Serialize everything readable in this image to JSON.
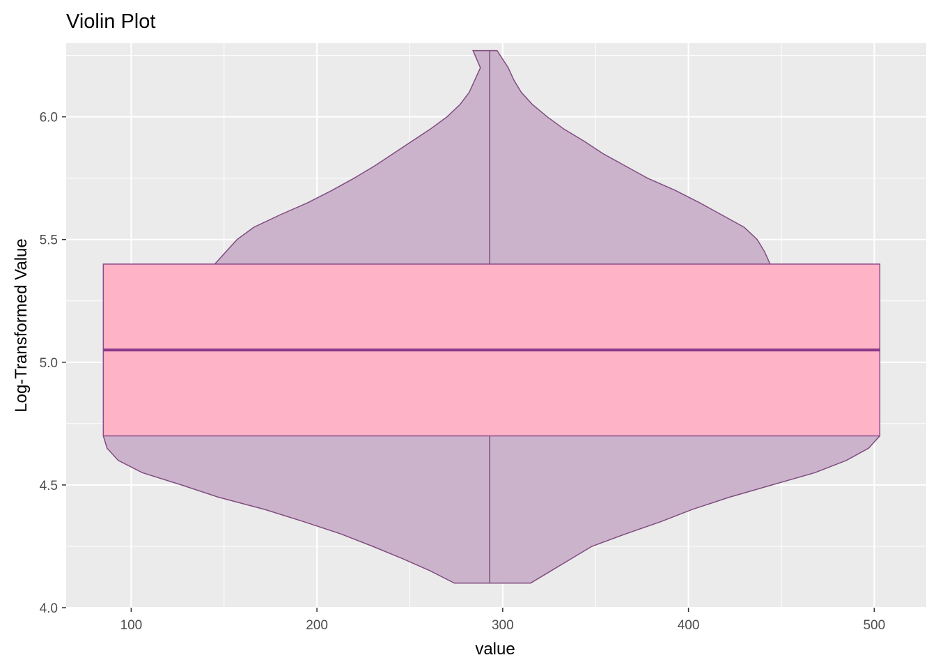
{
  "chart_data": {
    "type": "violin",
    "title": "Violin Plot",
    "xlabel": "value",
    "ylabel": "Log-Transformed Value",
    "xlim": [
      65,
      528
    ],
    "ylim": [
      4.0,
      6.3
    ],
    "x_ticks": [
      100,
      200,
      300,
      400,
      500
    ],
    "y_ticks": [
      4.0,
      4.5,
      5.0,
      5.5,
      6.0
    ],
    "x_tick_labels": [
      "100",
      "200",
      "300",
      "400",
      "500"
    ],
    "y_tick_labels": [
      "4.0",
      "4.5",
      "5.0",
      "5.5",
      "6.0"
    ],
    "grid": true,
    "legend": "none",
    "violin": {
      "center_x": 293,
      "y_min": 4.1,
      "y_max": 6.27,
      "outline": [
        {
          "y": 4.1,
          "left": 274,
          "right": 315
        },
        {
          "y": 4.15,
          "left": 261,
          "right": 326
        },
        {
          "y": 4.2,
          "left": 246,
          "right": 337
        },
        {
          "y": 4.25,
          "left": 230,
          "right": 348
        },
        {
          "y": 4.3,
          "left": 213,
          "right": 366
        },
        {
          "y": 4.35,
          "left": 193,
          "right": 385
        },
        {
          "y": 4.4,
          "left": 172,
          "right": 402
        },
        {
          "y": 4.45,
          "left": 147,
          "right": 422
        },
        {
          "y": 4.5,
          "left": 127,
          "right": 445
        },
        {
          "y": 4.55,
          "left": 106,
          "right": 468
        },
        {
          "y": 4.6,
          "left": 93,
          "right": 485
        },
        {
          "y": 4.65,
          "left": 87,
          "right": 497
        },
        {
          "y": 4.7,
          "left": 85,
          "right": 503
        },
        {
          "y": 5.4,
          "left": 145,
          "right": 444
        },
        {
          "y": 5.45,
          "left": 151,
          "right": 441
        },
        {
          "y": 5.5,
          "left": 157,
          "right": 437
        },
        {
          "y": 5.55,
          "left": 166,
          "right": 430
        },
        {
          "y": 5.6,
          "left": 180,
          "right": 418
        },
        {
          "y": 5.65,
          "left": 195,
          "right": 406
        },
        {
          "y": 5.7,
          "left": 208,
          "right": 393
        },
        {
          "y": 5.75,
          "left": 220,
          "right": 378
        },
        {
          "y": 5.8,
          "left": 231,
          "right": 366
        },
        {
          "y": 5.85,
          "left": 241,
          "right": 354
        },
        {
          "y": 5.9,
          "left": 251,
          "right": 344
        },
        {
          "y": 5.95,
          "left": 261,
          "right": 333
        },
        {
          "y": 6.0,
          "left": 270,
          "right": 324
        },
        {
          "y": 6.05,
          "left": 277,
          "right": 316
        },
        {
          "y": 6.1,
          "left": 282,
          "right": 310
        },
        {
          "y": 6.15,
          "left": 285,
          "right": 306
        },
        {
          "y": 6.2,
          "left": 288,
          "right": 303
        },
        {
          "y": 6.27,
          "left": 284,
          "right": 297
        }
      ],
      "fill": "#ccb3cc",
      "stroke": "#7f4d7f"
    },
    "box": {
      "x_left": 85,
      "x_right": 503,
      "q1": 4.7,
      "median": 5.05,
      "q3": 5.4,
      "fill": "#ffb3c6",
      "stroke": "#8b4c8b",
      "median_color": "#8b3a8b"
    },
    "center_line": {
      "x": 293,
      "y_from": 4.1,
      "y_to": 6.27,
      "color": "#7f4d7f"
    },
    "panel_bg": "#ebebeb",
    "grid_color": "#ffffff"
  }
}
